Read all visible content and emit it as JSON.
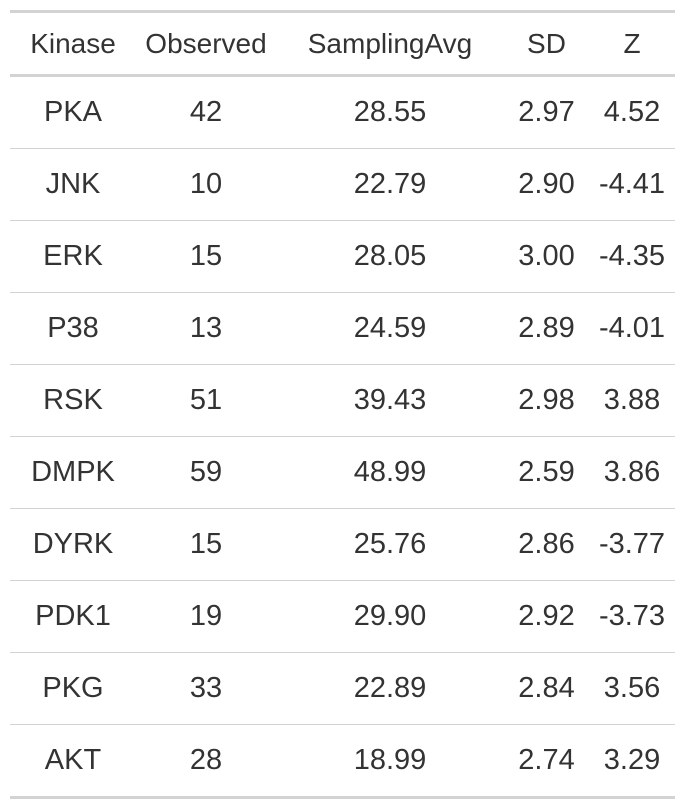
{
  "chart_data": {
    "type": "table",
    "columns": [
      "Kinase",
      "Observed",
      "SamplingAvg",
      "SD",
      "Z"
    ],
    "rows": [
      [
        "PKA",
        "42",
        "28.55",
        "2.97",
        "4.52"
      ],
      [
        "JNK",
        "10",
        "22.79",
        "2.90",
        "-4.41"
      ],
      [
        "ERK",
        "15",
        "28.05",
        "3.00",
        "-4.35"
      ],
      [
        "P38",
        "13",
        "24.59",
        "2.89",
        "-4.01"
      ],
      [
        "RSK",
        "51",
        "39.43",
        "2.98",
        "3.88"
      ],
      [
        "DMPK",
        "59",
        "48.99",
        "2.59",
        "3.86"
      ],
      [
        "DYRK",
        "15",
        "25.76",
        "2.86",
        "-3.77"
      ],
      [
        "PDK1",
        "19",
        "29.90",
        "2.92",
        "-3.73"
      ],
      [
        "PKG",
        "33",
        "22.89",
        "2.84",
        "3.56"
      ],
      [
        "AKT",
        "28",
        "18.99",
        "2.74",
        "3.29"
      ]
    ]
  },
  "colors": {
    "text": "#333333",
    "rule": "#d3d3d3",
    "background": "#ffffff"
  }
}
